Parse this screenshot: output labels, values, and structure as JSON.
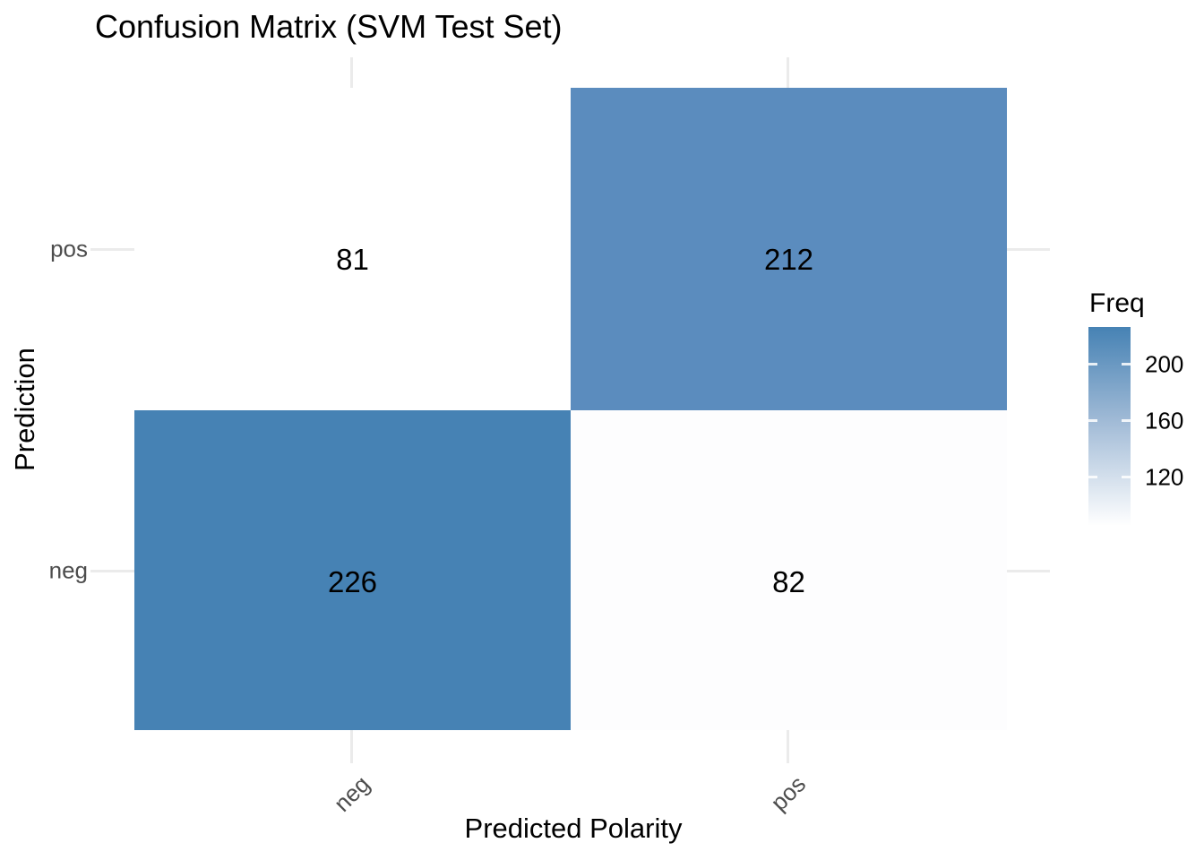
{
  "title": "Confusion Matrix (SVM Test Set)",
  "chart_data": {
    "type": "heatmap",
    "title": "Confusion Matrix (SVM Test Set)",
    "xlabel": "Predicted Polarity",
    "ylabel": "Prediction",
    "x_categories": [
      "neg",
      "pos"
    ],
    "y_categories_bottom_to_top": [
      "neg",
      "pos"
    ],
    "cells": [
      {
        "row": "pos",
        "col": "neg",
        "value": 81,
        "fill": "#FFFFFF"
      },
      {
        "row": "pos",
        "col": "pos",
        "value": 212,
        "fill": "#5B8CBE"
      },
      {
        "row": "neg",
        "col": "neg",
        "value": 226,
        "fill": "#4682B4"
      },
      {
        "row": "neg",
        "col": "pos",
        "value": 82,
        "fill": "#FDFDFE"
      }
    ],
    "axis_ticks": {
      "x": [
        "neg",
        "pos"
      ],
      "y": [
        "pos",
        "neg"
      ]
    },
    "legend": {
      "title": "Freq",
      "ticks": [
        "200",
        "160",
        "120"
      ],
      "gradient_high": "#4682B4",
      "gradient_mid": "#A0BAD6",
      "gradient_low": "#FFFFFF",
      "position": "right"
    },
    "layout_hints": {
      "grid": "major gridline stubs visible outside tiles",
      "x_tick_label_angle_deg": 45
    },
    "colors": {
      "axis_text": "#4D4D4D",
      "grid_line": "#EBEBEB",
      "text": "#000000",
      "background": "#FFFFFF"
    }
  }
}
